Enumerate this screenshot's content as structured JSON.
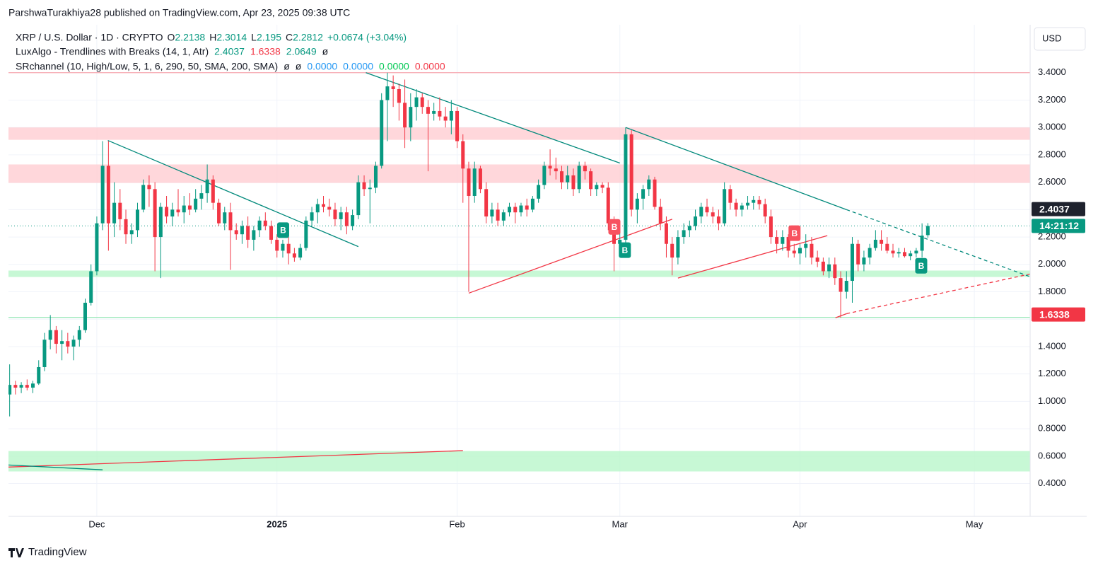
{
  "attribution": "ParshwaTurakhiya28 published on TradingView.com, Apr 23, 2025 09:38 UTC",
  "footer": "TradingView",
  "currency": "USD",
  "chart_data": {
    "type": "candlestick",
    "title": "XRP / U.S. Dollar · 1D · CRYPTO",
    "ohlc": [
      {
        "label": "O",
        "value": 2.2138
      },
      {
        "label": "H",
        "value": 2.3014
      },
      {
        "label": "L",
        "value": 2.195
      },
      {
        "label": "C",
        "value": 2.2812
      }
    ],
    "change": "+0.0674 (+3.04%)",
    "indicators": [
      {
        "name": "LuxAlgo - Trendlines with Breaks (14, 1, Atr)",
        "values": [
          {
            "text": "2.4037",
            "color": "#089981"
          },
          {
            "text": "1.6338",
            "color": "#f23645"
          },
          {
            "text": "2.0649",
            "color": "#089981"
          },
          {
            "text": "ø",
            "color": "#131722"
          }
        ]
      },
      {
        "name": "SRchannel (10, High/Low, 5, 1, 6, 290, 50, SMA, 200, SMA)",
        "values": [
          {
            "text": "ø",
            "color": "#131722"
          },
          {
            "text": "ø",
            "color": "#131722"
          },
          {
            "text": "0.0000",
            "color": "#2196f3"
          },
          {
            "text": "0.0000",
            "color": "#2196f3"
          },
          {
            "text": "0.0000",
            "color": "#00c853"
          },
          {
            "text": "0.0000",
            "color": "#f23645"
          }
        ]
      }
    ],
    "up_color": "#089981",
    "down_color": "#f23645",
    "xlim": [
      -0.2,
      175.6
    ],
    "xticks": [
      {
        "value": 15,
        "label": "Dec"
      },
      {
        "value": 46,
        "label": "2025"
      },
      {
        "value": 77,
        "label": "Feb"
      },
      {
        "value": 105,
        "label": "Mar"
      },
      {
        "value": 136,
        "label": "Apr"
      },
      {
        "value": 166,
        "label": "May"
      }
    ],
    "ylim": [
      0.16,
      3.75
    ],
    "yticks": [
      {
        "value": 0.4,
        "label": "0.4000"
      },
      {
        "value": 0.6,
        "label": "0.6000"
      },
      {
        "value": 0.8,
        "label": "0.8000"
      },
      {
        "value": 1,
        "label": "1.0000"
      },
      {
        "value": 1.2,
        "label": "1.2000"
      },
      {
        "value": 1.4,
        "label": "1.4000"
      },
      {
        "value": 1.6,
        "label": "1.6000"
      },
      {
        "value": 1.8,
        "label": "1.8000"
      },
      {
        "value": 2,
        "label": "2.0000"
      },
      {
        "value": 2.2,
        "label": "2.2000"
      },
      {
        "value": 2.4,
        "label": "2.4000"
      },
      {
        "value": 2.6,
        "label": "2.6000"
      },
      {
        "value": 2.8,
        "label": "2.8000"
      },
      {
        "value": 3,
        "label": "3.0000"
      },
      {
        "value": 3.2,
        "label": "3.2000"
      },
      {
        "value": 3.4,
        "label": "3.4000"
      }
    ],
    "grid": true,
    "candles": [
      [
        1.05,
        1.27,
        0.89,
        1.12
      ],
      [
        1.12,
        1.15,
        1.05,
        1.1
      ],
      [
        1.1,
        1.14,
        1.06,
        1.12
      ],
      [
        1.12,
        1.16,
        1.08,
        1.1
      ],
      [
        1.1,
        1.15,
        1.06,
        1.13
      ],
      [
        1.13,
        1.3,
        1.12,
        1.25
      ],
      [
        1.25,
        1.5,
        1.22,
        1.45
      ],
      [
        1.45,
        1.63,
        1.38,
        1.52
      ],
      [
        1.52,
        1.55,
        1.35,
        1.42
      ],
      [
        1.42,
        1.52,
        1.3,
        1.44
      ],
      [
        1.44,
        1.5,
        1.35,
        1.4
      ],
      [
        1.4,
        1.48,
        1.3,
        1.45
      ],
      [
        1.45,
        1.55,
        1.4,
        1.52
      ],
      [
        1.52,
        1.75,
        1.5,
        1.72
      ],
      [
        1.72,
        2,
        1.7,
        1.95
      ],
      [
        1.95,
        2.35,
        1.92,
        2.3
      ],
      [
        2.3,
        2.9,
        2.25,
        2.72
      ],
      [
        2.72,
        2.9,
        2.1,
        2.3
      ],
      [
        2.3,
        2.6,
        2.2,
        2.45
      ],
      [
        2.45,
        2.55,
        2.25,
        2.33
      ],
      [
        2.33,
        2.4,
        2.15,
        2.22
      ],
      [
        2.22,
        2.3,
        2.15,
        2.25
      ],
      [
        2.25,
        2.45,
        2.2,
        2.4
      ],
      [
        2.4,
        2.62,
        2.38,
        2.58
      ],
      [
        2.58,
        2.65,
        2.42,
        2.55
      ],
      [
        2.55,
        2.6,
        1.95,
        2.2
      ],
      [
        2.2,
        2.45,
        1.9,
        2.42
      ],
      [
        2.42,
        2.5,
        2.3,
        2.35
      ],
      [
        2.35,
        2.45,
        2.28,
        2.4
      ],
      [
        2.4,
        2.55,
        2.35,
        2.38
      ],
      [
        2.38,
        2.5,
        2.3,
        2.43
      ],
      [
        2.43,
        2.52,
        2.36,
        2.4
      ],
      [
        2.4,
        2.55,
        2.38,
        2.48
      ],
      [
        2.48,
        2.58,
        2.4,
        2.52
      ],
      [
        2.52,
        2.73,
        2.45,
        2.62
      ],
      [
        2.62,
        2.65,
        2.4,
        2.45
      ],
      [
        2.45,
        2.48,
        2.28,
        2.3
      ],
      [
        2.3,
        2.42,
        2.25,
        2.38
      ],
      [
        2.38,
        2.45,
        1.96,
        2.25
      ],
      [
        2.25,
        2.3,
        2.18,
        2.22
      ],
      [
        2.22,
        2.32,
        2.15,
        2.28
      ],
      [
        2.28,
        2.35,
        2.12,
        2.18
      ],
      [
        2.18,
        2.28,
        2.1,
        2.25
      ],
      [
        2.25,
        2.35,
        2.2,
        2.32
      ],
      [
        2.32,
        2.38,
        2.25,
        2.28
      ],
      [
        2.28,
        2.32,
        2.15,
        2.18
      ],
      [
        2.18,
        2.22,
        2.05,
        2.1
      ],
      [
        2.1,
        2.18,
        2.05,
        2.15
      ],
      [
        2.15,
        2.2,
        2,
        2.08
      ],
      [
        2.08,
        2.12,
        2.02,
        2.05
      ],
      [
        2.05,
        2.15,
        2.03,
        2.12
      ],
      [
        2.12,
        2.35,
        2.1,
        2.32
      ],
      [
        2.32,
        2.42,
        2.28,
        2.38
      ],
      [
        2.38,
        2.48,
        2.3,
        2.44
      ],
      [
        2.44,
        2.5,
        2.38,
        2.42
      ],
      [
        2.42,
        2.48,
        2.35,
        2.4
      ],
      [
        2.4,
        2.45,
        2.28,
        2.33
      ],
      [
        2.33,
        2.42,
        2.25,
        2.38
      ],
      [
        2.38,
        2.42,
        2.22,
        2.28
      ],
      [
        2.28,
        2.4,
        2.25,
        2.36
      ],
      [
        2.36,
        2.65,
        2.33,
        2.6
      ],
      [
        2.6,
        2.65,
        2.5,
        2.55
      ],
      [
        2.55,
        2.62,
        2.3,
        2.56
      ],
      [
        2.56,
        2.75,
        2.52,
        2.72
      ],
      [
        2.72,
        3.25,
        2.7,
        3.2
      ],
      [
        3.2,
        3.4,
        2.9,
        3.3
      ],
      [
        3.3,
        3.38,
        3.15,
        3.28
      ],
      [
        3.28,
        3.32,
        3.05,
        3.18
      ],
      [
        3.18,
        3.35,
        2.85,
        3
      ],
      [
        3,
        3.25,
        2.9,
        3.15
      ],
      [
        3.15,
        3.28,
        3.05,
        3.22
      ],
      [
        3.22,
        3.25,
        3.1,
        3.15
      ],
      [
        3.15,
        3.2,
        2.68,
        3.1
      ],
      [
        3.1,
        3.18,
        3.05,
        3.12
      ],
      [
        3.12,
        3.22,
        3.05,
        3.08
      ],
      [
        3.08,
        3.15,
        3,
        3.05
      ],
      [
        3.05,
        3.2,
        2.95,
        3.12
      ],
      [
        3.12,
        3.15,
        2.85,
        2.9
      ],
      [
        2.9,
        2.95,
        2.45,
        2.7
      ],
      [
        2.7,
        2.75,
        1.8,
        2.5
      ],
      [
        2.5,
        2.75,
        2.45,
        2.7
      ],
      [
        2.7,
        2.72,
        2.52,
        2.55
      ],
      [
        2.55,
        2.6,
        2.3,
        2.35
      ],
      [
        2.35,
        2.45,
        2.3,
        2.4
      ],
      [
        2.4,
        2.45,
        2.28,
        2.32
      ],
      [
        2.32,
        2.4,
        2.28,
        2.38
      ],
      [
        2.38,
        2.45,
        2.35,
        2.42
      ],
      [
        2.42,
        2.45,
        2.3,
        2.38
      ],
      [
        2.38,
        2.45,
        2.35,
        2.43
      ],
      [
        2.43,
        2.48,
        2.35,
        2.4
      ],
      [
        2.4,
        2.5,
        2.38,
        2.48
      ],
      [
        2.48,
        2.62,
        2.45,
        2.58
      ],
      [
        2.58,
        2.75,
        2.55,
        2.72
      ],
      [
        2.72,
        2.84,
        2.65,
        2.7
      ],
      [
        2.7,
        2.78,
        2.62,
        2.68
      ],
      [
        2.68,
        2.72,
        2.55,
        2.6
      ],
      [
        2.6,
        2.72,
        2.55,
        2.65
      ],
      [
        2.65,
        2.7,
        2.5,
        2.55
      ],
      [
        2.55,
        2.75,
        2.52,
        2.72
      ],
      [
        2.72,
        2.75,
        2.62,
        2.68
      ],
      [
        2.68,
        2.7,
        2.5,
        2.55
      ],
      [
        2.55,
        2.6,
        2.5,
        2.58
      ],
      [
        2.58,
        2.6,
        2.52,
        2.56
      ],
      [
        2.56,
        2.6,
        2.25,
        2.3
      ],
      [
        2.3,
        2.35,
        1.95,
        2.15
      ],
      [
        2.15,
        2.25,
        2.1,
        2.18
      ],
      [
        2.18,
        3,
        2.15,
        2.95
      ],
      [
        2.95,
        2.98,
        2.35,
        2.4
      ],
      [
        2.4,
        2.52,
        2.3,
        2.48
      ],
      [
        2.48,
        2.58,
        2.4,
        2.55
      ],
      [
        2.55,
        2.65,
        2.5,
        2.62
      ],
      [
        2.62,
        2.64,
        2.4,
        2.42
      ],
      [
        2.42,
        2.48,
        2.25,
        2.3
      ],
      [
        2.3,
        2.35,
        2.05,
        2.15
      ],
      [
        2.15,
        2.2,
        1.92,
        2.05
      ],
      [
        2.05,
        2.25,
        2,
        2.2
      ],
      [
        2.2,
        2.3,
        2.15,
        2.25
      ],
      [
        2.25,
        2.32,
        2.2,
        2.28
      ],
      [
        2.28,
        2.4,
        2.25,
        2.35
      ],
      [
        2.35,
        2.45,
        2.3,
        2.42
      ],
      [
        2.42,
        2.48,
        2.35,
        2.38
      ],
      [
        2.38,
        2.42,
        2.3,
        2.35
      ],
      [
        2.35,
        2.4,
        2.25,
        2.3
      ],
      [
        2.3,
        2.6,
        2.28,
        2.55
      ],
      [
        2.55,
        2.58,
        2.4,
        2.45
      ],
      [
        2.45,
        2.48,
        2.35,
        2.4
      ],
      [
        2.4,
        2.45,
        2.35,
        2.43
      ],
      [
        2.43,
        2.5,
        2.4,
        2.45
      ],
      [
        2.45,
        2.5,
        2.4,
        2.47
      ],
      [
        2.47,
        2.5,
        2.4,
        2.44
      ],
      [
        2.44,
        2.48,
        2.3,
        2.35
      ],
      [
        2.35,
        2.4,
        2.15,
        2.2
      ],
      [
        2.2,
        2.25,
        2.08,
        2.15
      ],
      [
        2.15,
        2.25,
        2.1,
        2.2
      ],
      [
        2.2,
        2.22,
        2.05,
        2.1
      ],
      [
        2.1,
        2.15,
        2.05,
        2.08
      ],
      [
        2.08,
        2.15,
        2,
        2.12
      ],
      [
        2.12,
        2.22,
        2.05,
        2.15
      ],
      [
        2.15,
        2.2,
        2,
        2.05
      ],
      [
        2.05,
        2.1,
        1.98,
        2.02
      ],
      [
        2.02,
        2.05,
        1.92,
        1.95
      ],
      [
        1.95,
        2.05,
        1.9,
        2
      ],
      [
        2,
        2.05,
        1.85,
        1.9
      ],
      [
        1.9,
        1.95,
        1.61,
        1.8
      ],
      [
        1.8,
        1.95,
        1.75,
        1.88
      ],
      [
        1.88,
        2.2,
        1.72,
        2.15
      ],
      [
        2.15,
        2.18,
        1.95,
        2
      ],
      [
        2,
        2.1,
        1.95,
        2.05
      ],
      [
        2.05,
        2.15,
        2,
        2.12
      ],
      [
        2.12,
        2.25,
        2.1,
        2.18
      ],
      [
        2.18,
        2.25,
        2.1,
        2.15
      ],
      [
        2.15,
        2.2,
        2.08,
        2.1
      ],
      [
        2.1,
        2.15,
        2.05,
        2.08
      ],
      [
        2.08,
        2.12,
        2.05,
        2.09
      ],
      [
        2.09,
        2.12,
        2.05,
        2.06
      ],
      [
        2.06,
        2.1,
        2.03,
        2.08
      ],
      [
        2.08,
        2.12,
        2.05,
        2.1
      ],
      [
        2.1,
        2.3,
        2.05,
        2.21
      ],
      [
        2.2138,
        2.3014,
        2.195,
        2.2812
      ]
    ],
    "zones": [
      {
        "top": 3,
        "bottom": 2.91,
        "color": "#ffcdd2"
      },
      {
        "top": 2.73,
        "bottom": 2.595,
        "color": "#ffcdd2"
      },
      {
        "top": 1.955,
        "bottom": 1.908,
        "color": "#b9f6ca"
      },
      {
        "top": 0.637,
        "bottom": 0.488,
        "color": "#b9f6ca"
      }
    ],
    "hlines": [
      {
        "value": 3.4,
        "color": "#f7a8b0"
      },
      {
        "value": 1.613,
        "color": "#8ee6b0"
      }
    ],
    "trendlines": [
      {
        "points": [
          [
            16.9,
            2.905
          ],
          [
            60,
            2.13
          ]
        ],
        "color": "#00897b",
        "dashed": false
      },
      {
        "points": [
          [
            61.3,
            3.4
          ],
          [
            105,
            2.74
          ]
        ],
        "color": "#00897b",
        "dashed": false
      },
      {
        "points": [
          [
            106,
            3
          ],
          [
            144,
            2.4
          ]
        ],
        "color": "#00897b",
        "dashed": false
      },
      {
        "points": [
          [
            144,
            2.4
          ],
          [
            175.6,
            1.91
          ]
        ],
        "color": "#00897b",
        "dashed": true
      },
      {
        "points": [
          [
            79,
            1.79
          ],
          [
            114,
            2.33
          ]
        ],
        "color": "#f23645",
        "dashed": false
      },
      {
        "points": [
          [
            115,
            1.9
          ],
          [
            140.7,
            2.21
          ]
        ],
        "color": "#f23645",
        "dashed": false
      },
      {
        "points": [
          [
            142.1,
            1.61
          ],
          [
            144,
            1.64
          ]
        ],
        "color": "#f23645",
        "dashed": false
      },
      {
        "points": [
          [
            144,
            1.64
          ],
          [
            175.6,
            1.93
          ]
        ],
        "color": "#f23645",
        "dashed": true
      },
      {
        "points": [
          [
            -0.2,
            0.52
          ],
          [
            78,
            0.64
          ]
        ],
        "color": "#f23645",
        "dashed": false
      },
      {
        "points": [
          [
            -0.2,
            0.535
          ],
          [
            16,
            0.5
          ]
        ],
        "color": "#00897b",
        "dashed": false
      }
    ],
    "annotations": [
      {
        "text": "B",
        "x": 47,
        "y": 2.25,
        "color": "#089981"
      },
      {
        "text": "B",
        "x": 104,
        "y": 2.274,
        "color": "#f7525f"
      },
      {
        "text": "B",
        "x": 105.8,
        "y": 2.104,
        "color": "#089981"
      },
      {
        "text": "B",
        "x": 135,
        "y": 2.228,
        "color": "#f7525f"
      },
      {
        "text": "B",
        "x": 156.8,
        "y": 1.99,
        "color": "#089981"
      }
    ],
    "price_labels": [
      {
        "value": 2.4037,
        "color": "#1e222d",
        "style": "solid"
      },
      {
        "value": 2.2812,
        "label": "14:21:12",
        "color": "#089981",
        "style": "dotted"
      },
      {
        "value": 1.6338,
        "color": "#f23645",
        "style": "solid"
      }
    ]
  }
}
